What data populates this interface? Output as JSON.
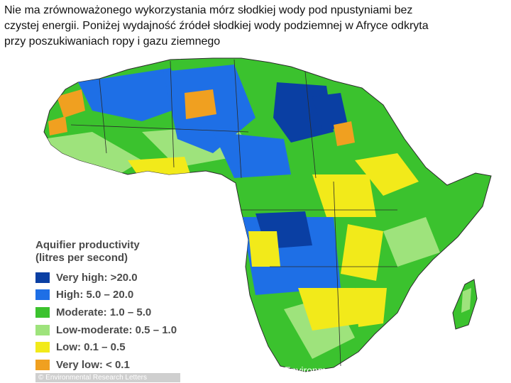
{
  "title_lines": [
    "Nie ma  zrównoważonego wykorzystania mórz słodkiej wody pod npustyniami bez",
    "czystej energii. Poniżej wydajność źródeł słodkiej wody  podziemnej w Afryce odkryta",
    "przy poszukiwaniach ropy i gazu ziemnego"
  ],
  "legend": {
    "title": "Aquifier productivity",
    "subtitle": "(litres per second)",
    "items": [
      {
        "label": "Very high: >20.0",
        "color": "#0a3fa3"
      },
      {
        "label": "High: 5.0 – 20.0",
        "color": "#1e6fe6"
      },
      {
        "label": "Moderate: 1.0 – 5.0",
        "color": "#3bc22e"
      },
      {
        "label": "Low-moderate: 0.5 – 1.0",
        "color": "#9ee37c"
      },
      {
        "label": "Low: 0.1 – 0.5",
        "color": "#f2ea1a"
      },
      {
        "label": "Very low: < 0.1",
        "color": "#f0a020"
      }
    ]
  },
  "credit": "© Environmental Research Letters",
  "overlay_fragment": "for Environm"
}
